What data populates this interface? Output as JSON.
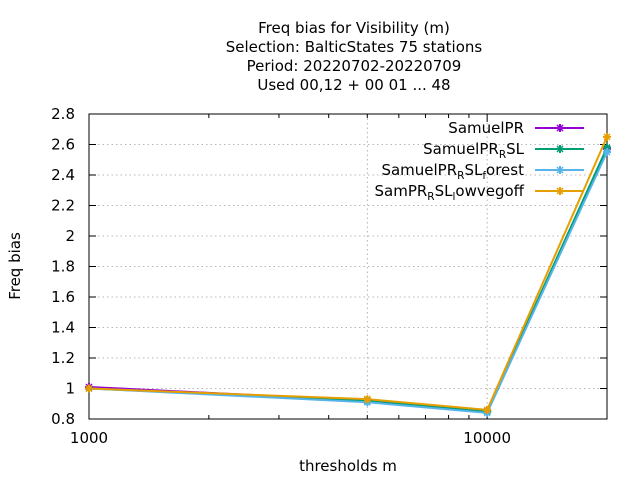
{
  "chart_data": {
    "type": "line",
    "title_lines": [
      "Freq bias  for Visibility (m)",
      "Selection: BalticStates     75 stations",
      "Period: 20220702-20220709",
      "Used  00,12  + 00 01 ... 48"
    ],
    "xlabel": "thresholds m",
    "ylabel": "Freq bias",
    "x_scale": "log",
    "xlim": [
      1000,
      20000
    ],
    "ylim": [
      0.8,
      2.8
    ],
    "x_tick_labels": [
      {
        "value": 1000,
        "label": "1000"
      },
      {
        "value": 10000,
        "label": "10000"
      }
    ],
    "y_ticks": [
      0.8,
      1,
      1.2,
      1.4,
      1.6,
      1.8,
      2,
      2.2,
      2.4,
      2.6,
      2.8
    ],
    "y_tick_labels": [
      "0.8",
      "1",
      "1.2",
      "1.4",
      "1.6",
      "1.8",
      "2",
      "2.2",
      "2.4",
      "2.6",
      "2.8"
    ],
    "grid": true,
    "legend_position": "top-right",
    "x": [
      1000,
      5000,
      10000,
      20000
    ],
    "series": [
      {
        "name": "SamuelPR",
        "label_parts": [
          {
            "t": "SamuelPR",
            "s": false
          }
        ],
        "color": "#9400d3",
        "values": [
          1.01,
          0.92,
          0.85,
          2.57
        ]
      },
      {
        "name": "SamuelPR_RSL",
        "label_parts": [
          {
            "t": "SamuelPR",
            "s": false
          },
          {
            "t": "R",
            "s": true
          },
          {
            "t": "SL",
            "s": false
          }
        ],
        "color": "#009e73",
        "values": [
          1.0,
          0.92,
          0.85,
          2.58
        ]
      },
      {
        "name": "SamuelPR_RSL_forest",
        "label_parts": [
          {
            "t": "SamuelPR",
            "s": false
          },
          {
            "t": "R",
            "s": true
          },
          {
            "t": "SL",
            "s": false
          },
          {
            "t": "f",
            "s": true
          },
          {
            "t": "orest",
            "s": false
          }
        ],
        "color": "#56b4e9",
        "values": [
          1.0,
          0.91,
          0.84,
          2.55
        ]
      },
      {
        "name": "SamPR_RSL_lowvegoff",
        "label_parts": [
          {
            "t": "SamPR",
            "s": false
          },
          {
            "t": "R",
            "s": true
          },
          {
            "t": "SL",
            "s": false
          },
          {
            "t": "l",
            "s": true
          },
          {
            "t": "owvegoff",
            "s": false
          }
        ],
        "color": "#e69f00",
        "values": [
          1.0,
          0.93,
          0.86,
          2.65
        ]
      }
    ]
  }
}
